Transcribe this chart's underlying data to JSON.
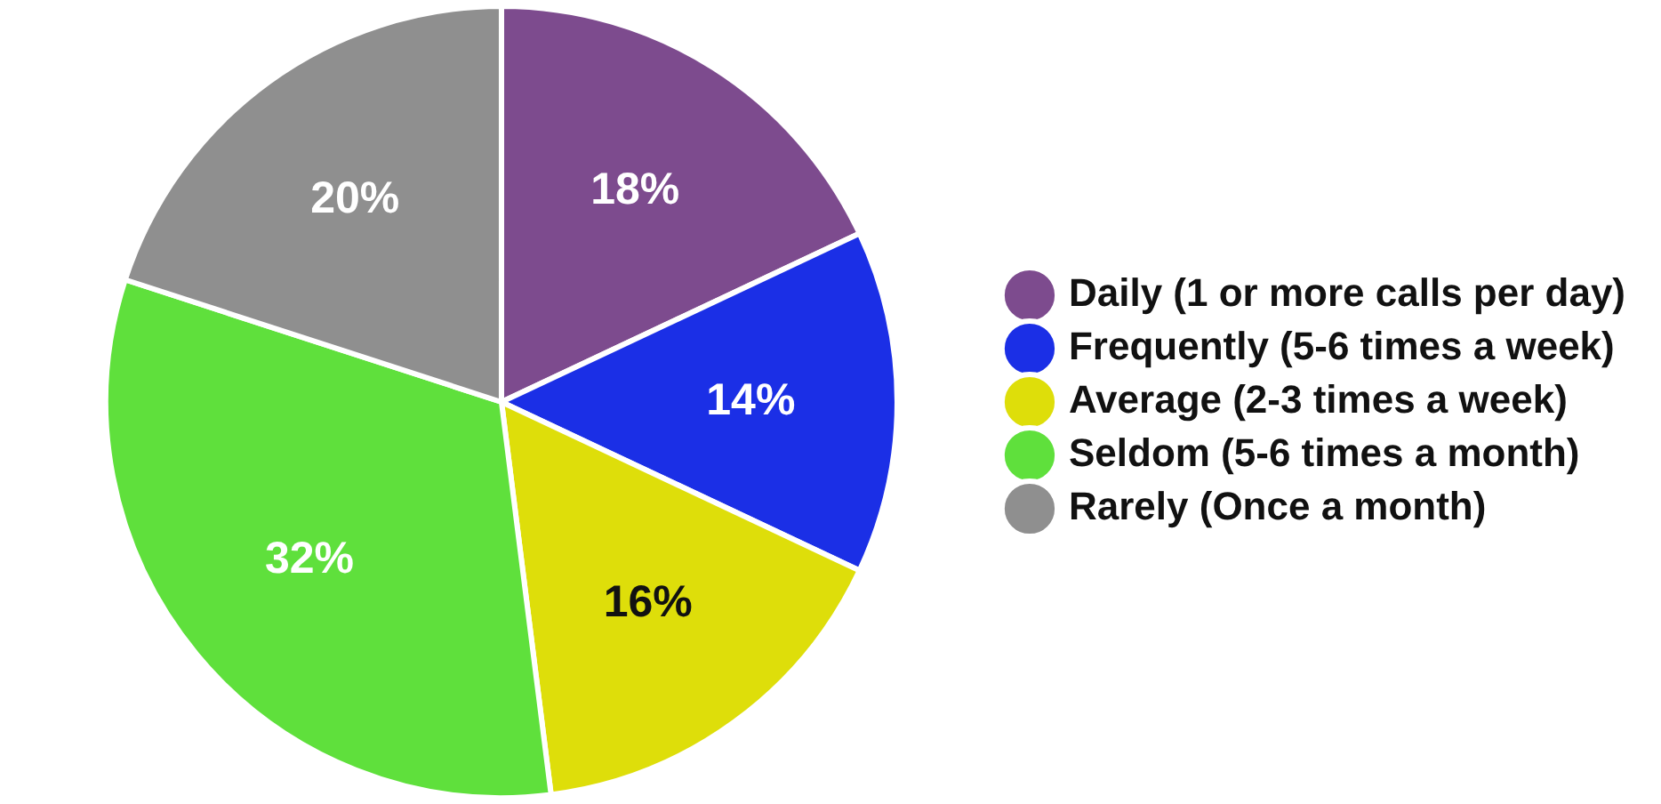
{
  "chart_data": {
    "type": "pie",
    "categories": [
      "Daily (1 or more calls per day)",
      "Frequently (5-6 times a week)",
      "Average (2-3 times a week)",
      "Seldom (5-6 times a month)",
      "Rarely (Once a month)"
    ],
    "values": [
      18,
      14,
      16,
      32,
      20
    ],
    "colors": [
      "#7d4b8e",
      "#1b2fe6",
      "#dede0a",
      "#5fe03c",
      "#8f8f8f"
    ],
    "value_labels": [
      "18%",
      "14%",
      "16%",
      "32%",
      "20%"
    ],
    "legend": "right"
  }
}
